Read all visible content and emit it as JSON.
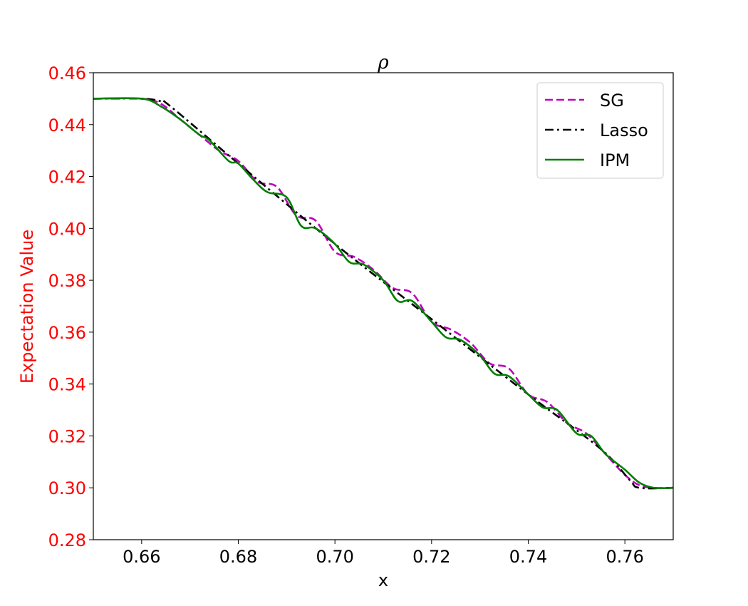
{
  "chart_data": {
    "type": "line",
    "title": "ρ",
    "xlabel": "x",
    "ylabel": "Expectation Value",
    "xlim": [
      0.65,
      0.77
    ],
    "ylim": [
      0.28,
      0.46
    ],
    "xticks": [
      "0.66",
      "0.68",
      "0.70",
      "0.72",
      "0.74",
      "0.76"
    ],
    "yticks": [
      "0.28",
      "0.30",
      "0.32",
      "0.34",
      "0.36",
      "0.38",
      "0.40",
      "0.42",
      "0.44",
      "0.46"
    ],
    "ylabel_color": "#ff0000",
    "yticks_color": "#ff0000",
    "grid": false,
    "legend_position": "top-right",
    "series": [
      {
        "name": "SG",
        "color": "#bf00bf",
        "style": "dashed",
        "x": [
          0.65,
          0.66,
          0.664,
          0.668,
          0.672,
          0.676,
          0.68,
          0.684,
          0.688,
          0.692,
          0.696,
          0.7,
          0.704,
          0.708,
          0.712,
          0.716,
          0.72,
          0.724,
          0.728,
          0.732,
          0.736,
          0.74,
          0.744,
          0.748,
          0.752,
          0.756,
          0.76,
          0.763,
          0.766,
          0.77
        ],
        "y": [
          0.45,
          0.45,
          0.448,
          0.442,
          0.436,
          0.43,
          0.426,
          0.418,
          0.416,
          0.405,
          0.403,
          0.391,
          0.389,
          0.384,
          0.377,
          0.375,
          0.364,
          0.361,
          0.356,
          0.348,
          0.346,
          0.336,
          0.333,
          0.325,
          0.321,
          0.313,
          0.305,
          0.301,
          0.3,
          0.3
        ]
      },
      {
        "name": "Lasso",
        "color": "#000000",
        "style": "dashdot",
        "x": [
          0.65,
          0.66,
          0.664,
          0.666,
          0.68,
          0.7,
          0.72,
          0.74,
          0.755,
          0.761,
          0.763,
          0.77
        ],
        "y": [
          0.45,
          0.45,
          0.449,
          0.447,
          0.425,
          0.394,
          0.365,
          0.336,
          0.315,
          0.303,
          0.3,
          0.3
        ]
      },
      {
        "name": "IPM",
        "color": "#007f00",
        "style": "solid",
        "x": [
          0.65,
          0.66,
          0.664,
          0.668,
          0.672,
          0.674,
          0.678,
          0.68,
          0.683,
          0.686,
          0.69,
          0.693,
          0.696,
          0.7,
          0.703,
          0.706,
          0.71,
          0.713,
          0.716,
          0.72,
          0.723,
          0.726,
          0.73,
          0.733,
          0.736,
          0.74,
          0.743,
          0.746,
          0.75,
          0.753,
          0.756,
          0.76,
          0.763,
          0.766,
          0.77
        ],
        "y": [
          0.45,
          0.45,
          0.447,
          0.442,
          0.436,
          0.434,
          0.426,
          0.425,
          0.419,
          0.414,
          0.412,
          0.401,
          0.4,
          0.394,
          0.387,
          0.386,
          0.38,
          0.372,
          0.372,
          0.364,
          0.358,
          0.357,
          0.351,
          0.344,
          0.343,
          0.336,
          0.331,
          0.33,
          0.321,
          0.32,
          0.313,
          0.307,
          0.302,
          0.3,
          0.3
        ]
      }
    ]
  }
}
